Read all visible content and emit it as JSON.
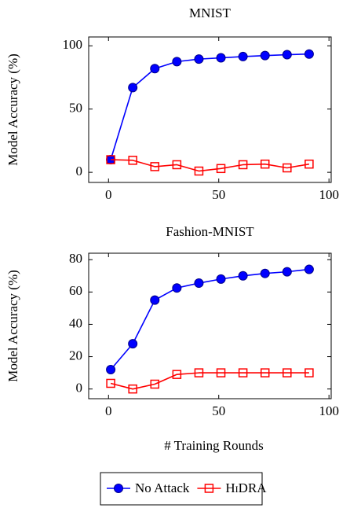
{
  "chart_data": [
    {
      "type": "line",
      "title": "MNIST",
      "ylabel": "Model Accuracy (%)",
      "x": [
        1,
        11,
        21,
        31,
        41,
        51,
        61,
        71,
        81,
        91
      ],
      "series": [
        {
          "name": "No Attack",
          "color": "#0000ff",
          "marker": "circle",
          "values": [
            10,
            67,
            82,
            87.5,
            89.5,
            90.5,
            91.5,
            92.3,
            93,
            93.5
          ]
        },
        {
          "name": "HiDRA",
          "color": "#ff0000",
          "marker": "square",
          "values": [
            10,
            9.5,
            4.5,
            6,
            1,
            3,
            6,
            6.5,
            3.5,
            6.5
          ]
        }
      ],
      "xlim": [
        -9,
        101
      ],
      "xticks": [
        0,
        50,
        100
      ],
      "ylim": [
        -8,
        107
      ],
      "yticks": [
        0,
        50,
        100
      ]
    },
    {
      "type": "line",
      "title": "Fashion-MNIST",
      "ylabel": "Model Accuracy (%)",
      "xlabel": "# Training Rounds",
      "x": [
        1,
        11,
        21,
        31,
        41,
        51,
        61,
        71,
        81,
        91
      ],
      "series": [
        {
          "color": "#0000ff",
          "marker": "circle",
          "values": [
            12,
            28,
            55,
            62.5,
            65.5,
            68,
            70,
            71.5,
            72.5,
            74
          ]
        },
        {
          "color": "#ff0000",
          "marker": "square",
          "values": [
            3.5,
            0,
            3,
            9,
            10,
            10,
            10,
            10,
            10,
            10
          ]
        }
      ],
      "xlim": [
        -9,
        101
      ],
      "xticks": [
        0,
        50,
        100
      ],
      "ylim": [
        -6,
        84
      ],
      "yticks": [
        0,
        20,
        40,
        60,
        80
      ]
    }
  ]
}
